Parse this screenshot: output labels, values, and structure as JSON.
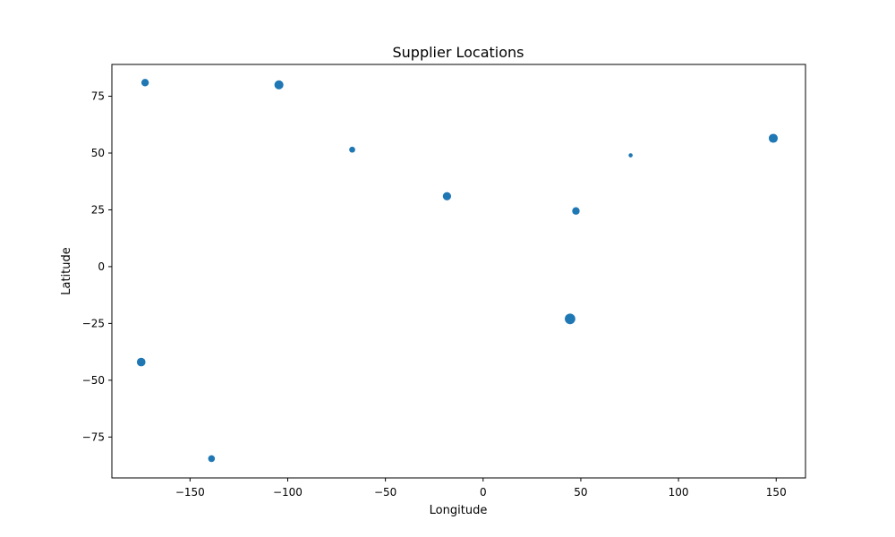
{
  "chart_data": {
    "type": "scatter",
    "title": "Supplier Locations",
    "xlabel": "Longitude",
    "ylabel": "Latitude",
    "xlim": [
      -190,
      165
    ],
    "ylim": [
      -93,
      89
    ],
    "xticks": [
      -150,
      -100,
      -50,
      0,
      50,
      100,
      150
    ],
    "yticks": [
      -75,
      -50,
      -25,
      0,
      25,
      50,
      75
    ],
    "grid": false,
    "point_color": "#1f77b4",
    "points": [
      {
        "x": -173,
        "y": 81,
        "size": 1.0
      },
      {
        "x": -104.5,
        "y": 80,
        "size": 1.2
      },
      {
        "x": -67,
        "y": 51.5,
        "size": 0.8
      },
      {
        "x": -18.5,
        "y": 31,
        "size": 1.1
      },
      {
        "x": 47.5,
        "y": 24.5,
        "size": 1.0
      },
      {
        "x": 75.5,
        "y": 49,
        "size": 0.55
      },
      {
        "x": 148.5,
        "y": 56.5,
        "size": 1.2
      },
      {
        "x": 44.5,
        "y": -23,
        "size": 1.4
      },
      {
        "x": -175,
        "y": -42,
        "size": 1.15
      },
      {
        "x": -139,
        "y": -84.5,
        "size": 0.9
      }
    ]
  }
}
